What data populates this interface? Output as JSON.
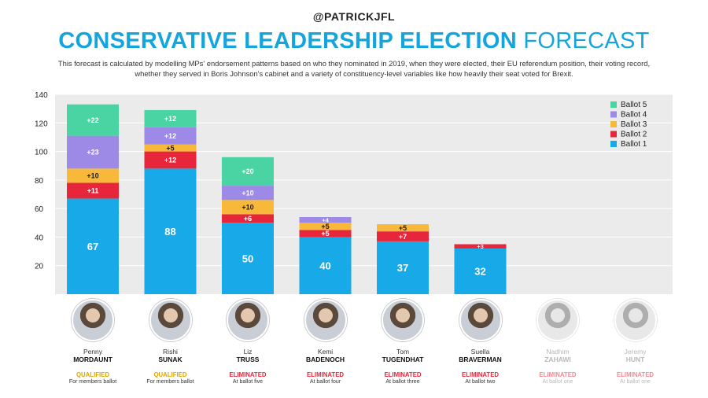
{
  "header": {
    "handle": "@PATRICKJFL",
    "title_bold": "CONSERVATIVE LEADERSHIP ELECTION",
    "title_light": "FORECAST",
    "description": "This forecast is calculated by modelling MPs' endorsement patterns based on who they nominated in 2019, when they were elected, their EU referendum position, their voting record, whether they served in Boris Johnson's cabinet and a variety of constituency-level variables like how heavily their seat voted for Brexit."
  },
  "colors": {
    "ballot1": "#18aae8",
    "ballot2": "#e8263b",
    "ballot3": "#f8b93a",
    "ballot4": "#9c8ae6",
    "ballot5": "#4ad3a3",
    "qualified": "#e2a400",
    "eliminated": "#e8263b"
  },
  "chart_data": {
    "type": "bar",
    "stacked": true,
    "title": "Conservative Leadership Election Forecast",
    "ylim": [
      0,
      140
    ],
    "yticks": [
      20,
      40,
      60,
      80,
      100,
      120,
      140
    ],
    "categories": [
      "Penny Mordaunt",
      "Rishi Sunak",
      "Liz Truss",
      "Kemi Badenoch",
      "Tom Tugendhat",
      "Suella Braverman"
    ],
    "series": [
      {
        "name": "Ballot 1",
        "values": [
          67,
          88,
          50,
          40,
          37,
          32
        ],
        "labels": [
          "67",
          "88",
          "50",
          "40",
          "37",
          "32"
        ]
      },
      {
        "name": "Ballot 2",
        "values": [
          11,
          12,
          6,
          5,
          7,
          3
        ],
        "labels": [
          "+11",
          "+12",
          "+6",
          "+5",
          "+7",
          "+3"
        ]
      },
      {
        "name": "Ballot 3",
        "values": [
          10,
          5,
          10,
          5,
          5,
          0
        ],
        "labels": [
          "+10",
          "+5",
          "+10",
          "+5",
          "+5",
          ""
        ]
      },
      {
        "name": "Ballot 4",
        "values": [
          23,
          12,
          10,
          4,
          0,
          0
        ],
        "labels": [
          "+23",
          "+12",
          "+10",
          "+4",
          "",
          ""
        ]
      },
      {
        "name": "Ballot 5",
        "values": [
          22,
          12,
          20,
          0,
          0,
          0
        ],
        "labels": [
          "+22",
          "+12",
          "+20",
          "",
          "",
          ""
        ]
      }
    ],
    "legend_position": "top-right",
    "legend": [
      "Ballot 5",
      "Ballot 4",
      "Ballot 3",
      "Ballot 2",
      "Ballot 1"
    ]
  },
  "candidates": [
    {
      "first": "Penny",
      "last": "MORDAUNT",
      "status": "QUALIFIED",
      "status_type": "qualified",
      "sub": "For members ballot",
      "dim": false
    },
    {
      "first": "Rishi",
      "last": "SUNAK",
      "status": "QUALIFIED",
      "status_type": "qualified",
      "sub": "For members ballot",
      "dim": false
    },
    {
      "first": "Liz",
      "last": "TRUSS",
      "status": "ELIMINATED",
      "status_type": "eliminated",
      "sub": "At ballot five",
      "dim": false
    },
    {
      "first": "Kemi",
      "last": "BADENOCH",
      "status": "ELIMINATED",
      "status_type": "eliminated",
      "sub": "At ballot four",
      "dim": false
    },
    {
      "first": "Tom",
      "last": "TUGENDHAT",
      "status": "ELIMINATED",
      "status_type": "eliminated",
      "sub": "At ballot three",
      "dim": false
    },
    {
      "first": "Suella",
      "last": "BRAVERMAN",
      "status": "ELIMINATED",
      "status_type": "eliminated",
      "sub": "At ballot two",
      "dim": false
    },
    {
      "first": "Nadhim",
      "last": "ZAHAWI",
      "status": "ELIMINATED",
      "status_type": "eliminated",
      "sub": "At ballot one",
      "dim": true
    },
    {
      "first": "Jeremy",
      "last": "HUNT",
      "status": "ELIMINATED",
      "status_type": "eliminated",
      "sub": "At ballot one",
      "dim": true
    }
  ]
}
